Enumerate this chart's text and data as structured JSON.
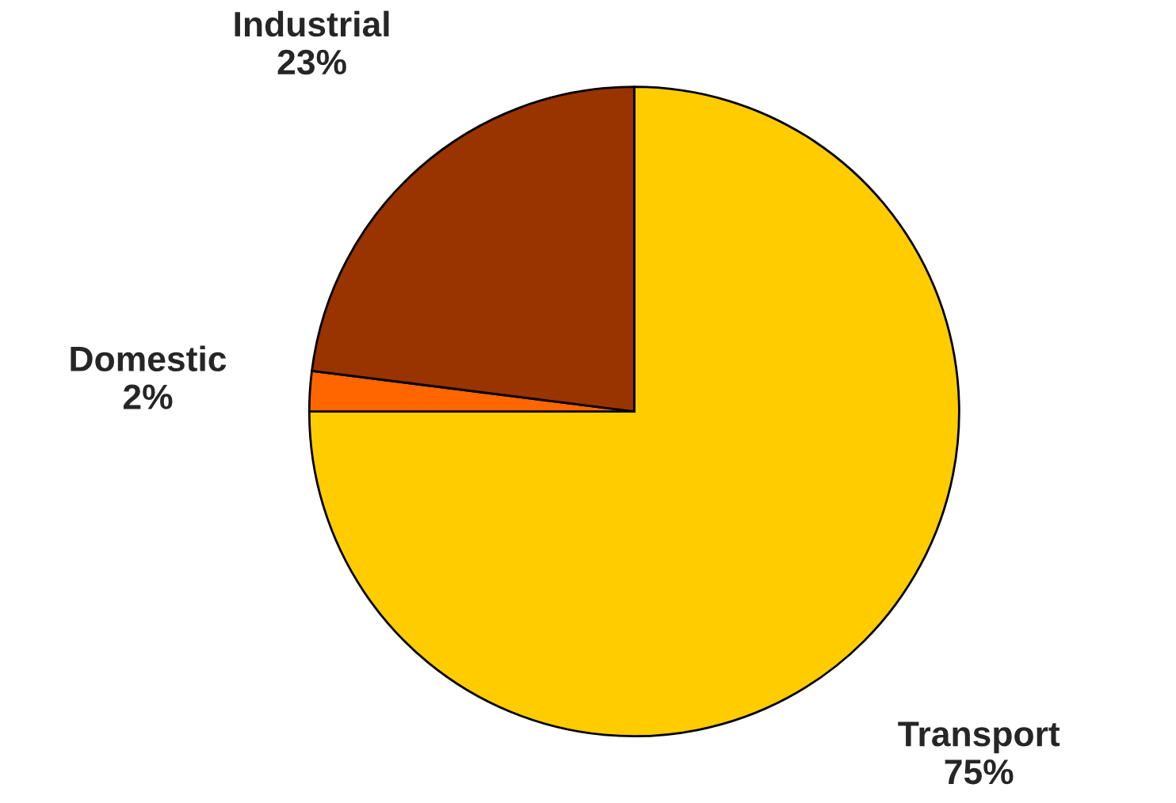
{
  "chart_data": {
    "type": "pie",
    "categories": [
      "Transport",
      "Domestic",
      "Industrial"
    ],
    "values": [
      75,
      2,
      23
    ],
    "colors": [
      "#ffcc00",
      "#ff6600",
      "#993300"
    ],
    "value_labels": [
      "75%",
      "2%",
      "23%"
    ],
    "legend": false
  }
}
